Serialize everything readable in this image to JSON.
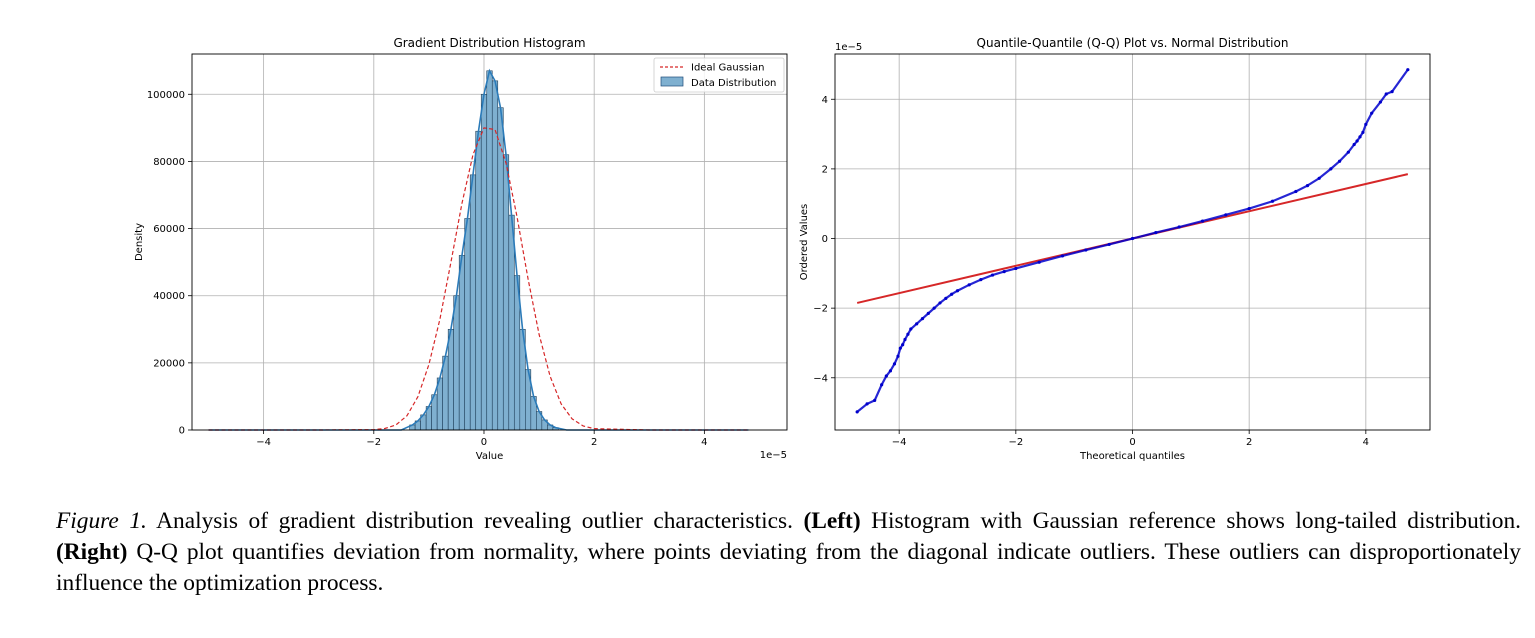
{
  "chart_data": [
    {
      "type": "bar",
      "subtype": "histogram",
      "title": "Gradient Distribution Histogram",
      "xlabel": "Value",
      "ylabel": "Density",
      "x_scale_label": "1e−5",
      "xlim": [
        -5.3,
        5.5
      ],
      "ylim": [
        0,
        112000
      ],
      "xticks": [
        -4,
        -2,
        0,
        2,
        4
      ],
      "yticks": [
        0,
        20000,
        40000,
        60000,
        80000,
        100000
      ],
      "grid": true,
      "legend_position": "top-right",
      "bin_width": 0.1,
      "hist_color": "#7fb0d0",
      "kde_color": "#2b7bb9",
      "gauss_color": "#d62728",
      "series": [
        {
          "name": "Data Distribution",
          "style": "histogram",
          "bins_x": [
            -1.3,
            -1.2,
            -1.1,
            -1.0,
            -0.9,
            -0.8,
            -0.7,
            -0.6,
            -0.5,
            -0.4,
            -0.3,
            -0.2,
            -0.1,
            0.0,
            0.1,
            0.2,
            0.3,
            0.4,
            0.5,
            0.6,
            0.7,
            0.8,
            0.9,
            1.0,
            1.1,
            1.2,
            1.3
          ],
          "values": [
            1500,
            2700,
            4500,
            7000,
            10500,
            15500,
            22000,
            30000,
            40000,
            52000,
            63000,
            76000,
            89000,
            100000,
            107000,
            104000,
            96000,
            82000,
            64000,
            46000,
            30000,
            18000,
            10000,
            5500,
            3000,
            1500,
            700
          ]
        },
        {
          "name": "Ideal Gaussian",
          "style": "dashed-line",
          "x": [
            -5,
            -4,
            -3,
            -2,
            -1.8,
            -1.6,
            -1.4,
            -1.2,
            -1.0,
            -0.8,
            -0.6,
            -0.4,
            -0.2,
            0.0,
            0.2,
            0.4,
            0.6,
            0.8,
            1.0,
            1.2,
            1.4,
            1.6,
            1.8,
            2,
            3,
            4,
            4.8
          ],
          "values": [
            0,
            0,
            0,
            100,
            450,
            1500,
            4200,
            9900,
            19500,
            33000,
            50000,
            67500,
            82000,
            90000,
            89500,
            79500,
            63500,
            45000,
            28500,
            16000,
            7800,
            3300,
            1200,
            400,
            0,
            0,
            0
          ]
        }
      ]
    },
    {
      "type": "scatter",
      "title": "Quantile-Quantile (Q-Q) Plot vs. Normal Distribution",
      "xlabel": "Theoretical quantiles",
      "ylabel": "Ordered Values",
      "y_scale_label": "1e−5",
      "xlim": [
        -5.1,
        5.1
      ],
      "ylim": [
        -5.5,
        5.3
      ],
      "xticks": [
        -4,
        -2,
        0,
        2,
        4
      ],
      "yticks": [
        -4,
        -2,
        0,
        2,
        4
      ],
      "grid": true,
      "points_color": "#0000cc",
      "line_color": "#d62728",
      "series": [
        {
          "name": "",
          "style": "points",
          "x": [
            -4.72,
            -4.55,
            -4.42,
            -4.3,
            -4.22,
            -4.15,
            -4.08,
            -4.02,
            -3.98,
            -3.94,
            -3.9,
            -3.85,
            -3.8,
            -3.7,
            -3.6,
            -3.5,
            -3.4,
            -3.3,
            -3.2,
            -3.1,
            -3.0,
            -2.8,
            -2.6,
            -2.4,
            -2.2,
            -2.0,
            -1.6,
            -1.2,
            -0.8,
            -0.4,
            0.0,
            0.4,
            0.8,
            1.2,
            1.6,
            2.0,
            2.4,
            2.8,
            3.0,
            3.2,
            3.4,
            3.55,
            3.7,
            3.8,
            3.85,
            3.9,
            3.95,
            4.0,
            4.1,
            4.25,
            4.35,
            4.45,
            4.72
          ],
          "values": [
            -4.98,
            -4.75,
            -4.65,
            -4.2,
            -3.95,
            -3.8,
            -3.6,
            -3.38,
            -3.15,
            -3.05,
            -2.9,
            -2.75,
            -2.6,
            -2.45,
            -2.3,
            -2.15,
            -2.0,
            -1.85,
            -1.72,
            -1.6,
            -1.5,
            -1.33,
            -1.18,
            -1.05,
            -0.95,
            -0.86,
            -0.68,
            -0.5,
            -0.33,
            -0.17,
            0.0,
            0.17,
            0.33,
            0.5,
            0.68,
            0.86,
            1.07,
            1.35,
            1.52,
            1.73,
            2.0,
            2.22,
            2.48,
            2.7,
            2.8,
            2.92,
            3.05,
            3.28,
            3.6,
            3.92,
            4.15,
            4.22,
            4.85
          ]
        },
        {
          "name": "",
          "style": "reference-line",
          "x": [
            -4.72,
            4.72
          ],
          "values": [
            -1.85,
            1.85
          ]
        }
      ]
    }
  ],
  "caption": {
    "fig_label": "Figure 1.",
    "intro": " Analysis of gradient distribution revealing outlier characteristics. ",
    "left_label": "(Left)",
    "left_text": " Histogram with Gaussian reference shows long-tailed distribution. ",
    "right_label": "(Right)",
    "right_text": " Q-Q plot quantifies deviation from normality, where points deviating from the diagonal indicate outliers. These outliers can disproportionately influence the optimization process."
  }
}
